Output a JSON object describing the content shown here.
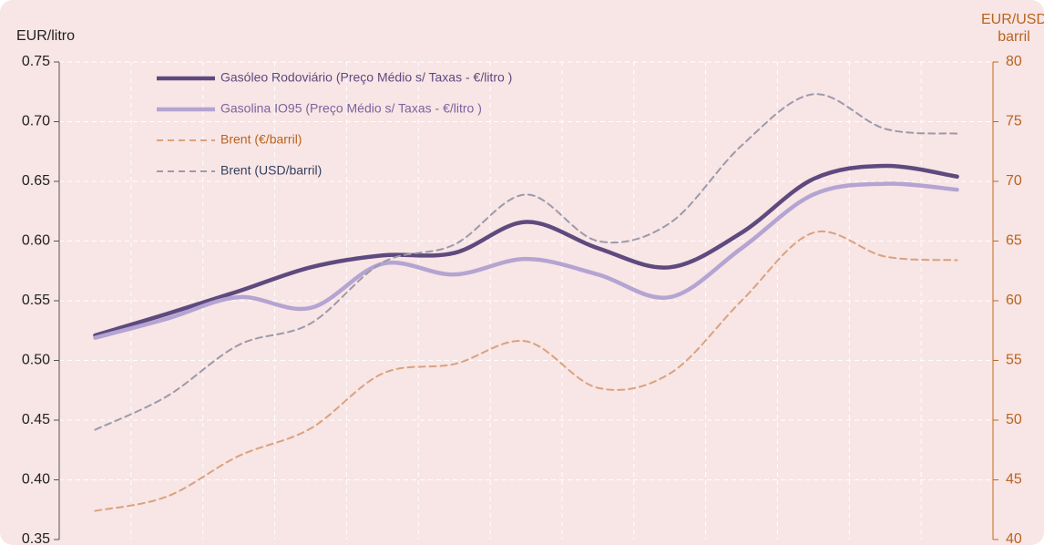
{
  "chart_data": {
    "type": "line",
    "ylabel": "EUR/litro",
    "y2label": [
      "EUR/USD",
      "barril"
    ],
    "categories": [
      null,
      null,
      null,
      null,
      null,
      null,
      null,
      null,
      null,
      null,
      null,
      null,
      null
    ],
    "ylim": [
      0.35,
      0.75
    ],
    "yticks": [
      0.35,
      {
        "value": 0.4,
        "label": "0.40"
      },
      0.45,
      {
        "value": 0.5,
        "label": "0.50"
      },
      0.55,
      {
        "value": 0.6,
        "label": "0.60"
      },
      0.65,
      {
        "value": 0.7,
        "label": "0.70"
      },
      0.75
    ],
    "y2lim": [
      40,
      80
    ],
    "y2ticks": [
      40,
      45,
      50,
      55,
      60,
      65,
      70,
      75,
      80
    ],
    "grid": true,
    "legend": "top-left",
    "series": [
      {
        "name": "Gasóleo Rodoviário (Preço Médio s/ Taxas - €/litro )",
        "color": "#5e4a7e",
        "style": "solid",
        "values": [
          0.521,
          0.539,
          0.558,
          0.578,
          0.588,
          0.59,
          0.616,
          0.594,
          0.578,
          0.607,
          0.652,
          0.663,
          0.654
        ]
      },
      {
        "name": "Gasolina IO95 (Preço Médio s/ Taxas - €/litro )",
        "color": "#b4a4d2",
        "style": "solid",
        "values": [
          0.519,
          0.535,
          0.553,
          0.544,
          0.581,
          0.572,
          0.585,
          0.572,
          0.553,
          0.594,
          0.639,
          0.648,
          0.643
        ]
      },
      {
        "name": "Brent (€/barril)",
        "color": "#d9a27e",
        "style": "dashed",
        "axis": "y2",
        "values": [
          42.4,
          43.6,
          47.0,
          49.3,
          53.9,
          54.7,
          56.6,
          52.7,
          53.9,
          60.0,
          65.7,
          63.7,
          63.4
        ]
      },
      {
        "name": "Brent (USD/barril)",
        "color": "#9c9aaa",
        "style": "dashed",
        "axis": "y2",
        "values": [
          49.2,
          52.0,
          56.3,
          58.1,
          63.2,
          64.7,
          68.9,
          65.0,
          66.5,
          73.0,
          77.3,
          74.4,
          74.0
        ]
      }
    ]
  }
}
